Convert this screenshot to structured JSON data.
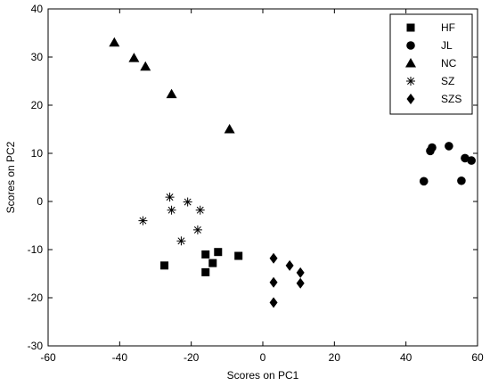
{
  "chart_data": {
    "type": "scatter",
    "title": "",
    "xlabel": "Scores on PC1",
    "ylabel": "Scores on PC2",
    "xlim": [
      -60,
      60
    ],
    "ylim": [
      -30,
      40
    ],
    "xticks": [
      -60,
      -40,
      -20,
      0,
      20,
      40,
      60
    ],
    "yticks": [
      -30,
      -20,
      -10,
      0,
      10,
      20,
      30,
      40
    ],
    "grid": false,
    "legend_position": "top-right",
    "series": [
      {
        "name": "HF",
        "marker": "square",
        "color": "#000000",
        "points": [
          [
            -27.5,
            -13.3
          ],
          [
            -16,
            -11
          ],
          [
            -12.5,
            -10.5
          ],
          [
            -14,
            -12.8
          ],
          [
            -16,
            -14.7
          ],
          [
            -6.8,
            -11.3
          ]
        ]
      },
      {
        "name": "JL",
        "marker": "circle",
        "color": "#000000",
        "points": [
          [
            45,
            4.2
          ],
          [
            46.8,
            10.5
          ],
          [
            47.3,
            11.2
          ],
          [
            52,
            11.5
          ],
          [
            55.5,
            4.3
          ],
          [
            56.5,
            9
          ],
          [
            58.3,
            8.5
          ]
        ]
      },
      {
        "name": "NC",
        "marker": "triangle",
        "color": "#000000",
        "points": [
          [
            -41.5,
            33
          ],
          [
            -36,
            29.8
          ],
          [
            -32.8,
            28
          ],
          [
            -25.5,
            22.3
          ],
          [
            -9.3,
            15
          ]
        ]
      },
      {
        "name": "SZ",
        "marker": "asterisk",
        "color": "#000000",
        "points": [
          [
            -33.5,
            -4
          ],
          [
            -26,
            0.9
          ],
          [
            -25.5,
            -1.8
          ],
          [
            -21,
            -0.1
          ],
          [
            -22.8,
            -8.2
          ],
          [
            -17.5,
            -1.8
          ],
          [
            -18.2,
            -5.9
          ]
        ]
      },
      {
        "name": "SZS",
        "marker": "diamond",
        "color": "#000000",
        "points": [
          [
            3,
            -11.8
          ],
          [
            3,
            -16.8
          ],
          [
            3,
            -21
          ],
          [
            7.5,
            -13.3
          ],
          [
            10.5,
            -14.8
          ],
          [
            10.5,
            -17
          ]
        ]
      }
    ]
  }
}
